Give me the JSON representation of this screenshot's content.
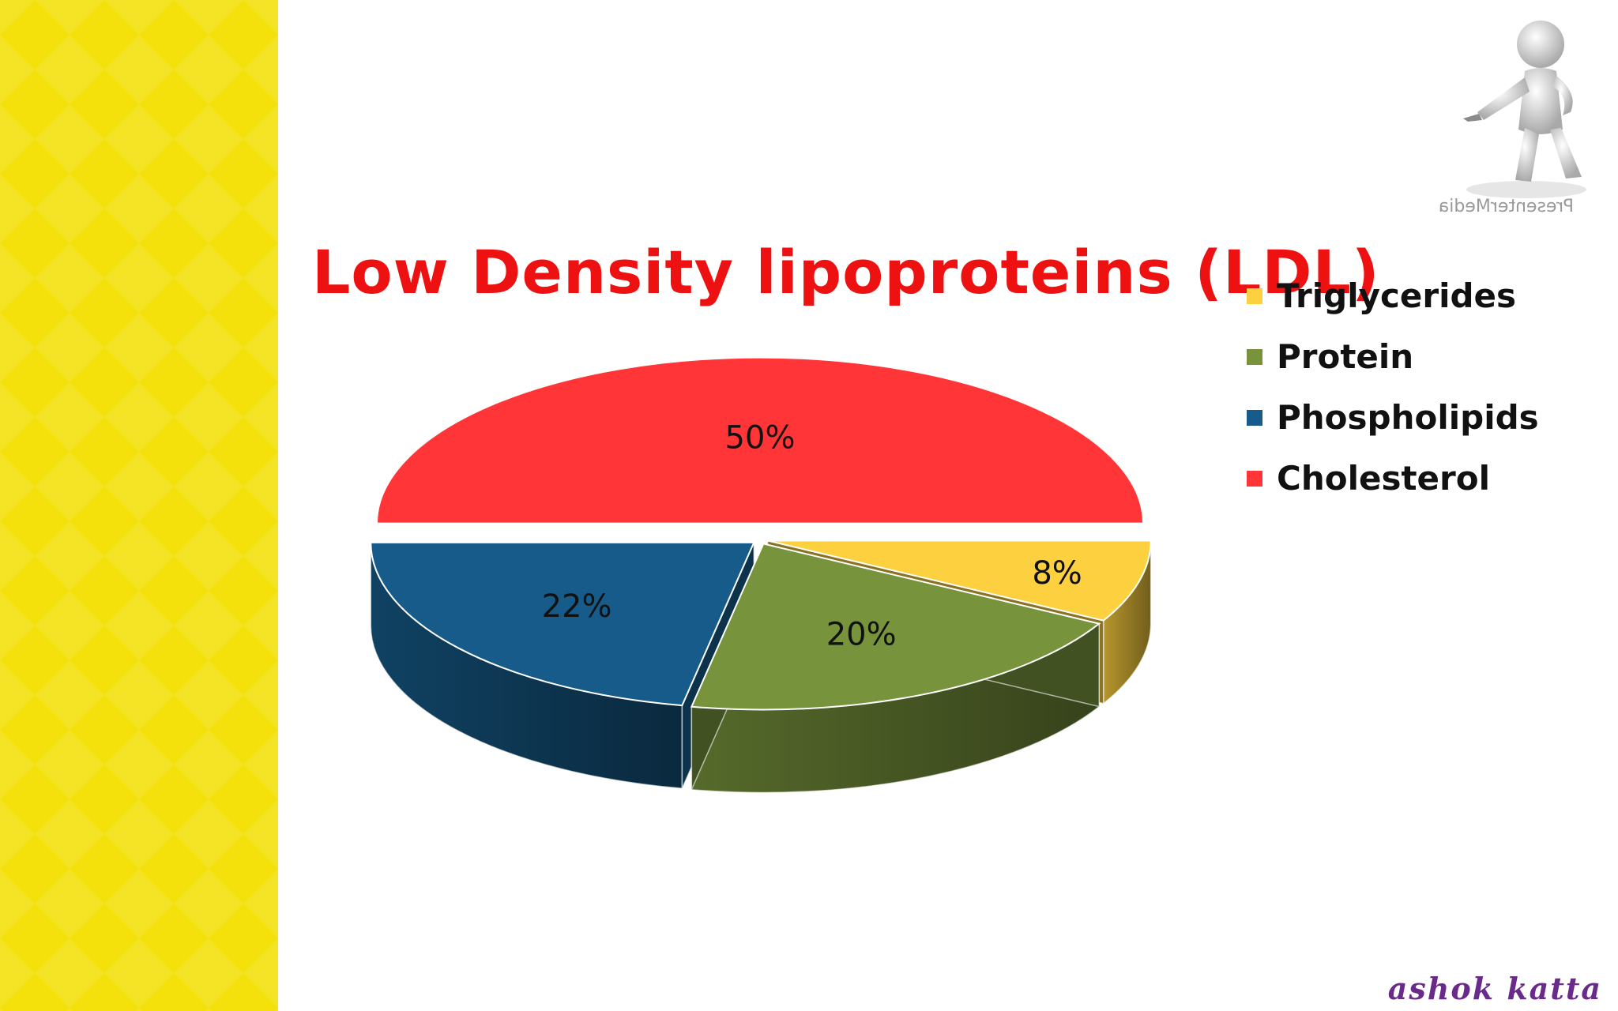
{
  "slide": {
    "title": "Low Density lipoproteins (LDL)",
    "watermark": "PresenterMedia",
    "signature": "ashok katta",
    "accent_color": "#f4e10c"
  },
  "chart_data": {
    "type": "pie",
    "title": "Low Density lipoproteins (LDL)",
    "legend_position": "right",
    "three_d": true,
    "exploded": true,
    "slices": [
      {
        "name": "Triglycerides",
        "value": 8,
        "label": "8%",
        "color": "#fdd03f"
      },
      {
        "name": "Protein",
        "value": 20,
        "label": "20%",
        "color": "#77933c"
      },
      {
        "name": "Phospholipids",
        "value": 22,
        "label": "22%",
        "color": "#165b8a"
      },
      {
        "name": "Cholesterol",
        "value": 50,
        "label": "50%",
        "color": "#ff3538"
      }
    ]
  }
}
